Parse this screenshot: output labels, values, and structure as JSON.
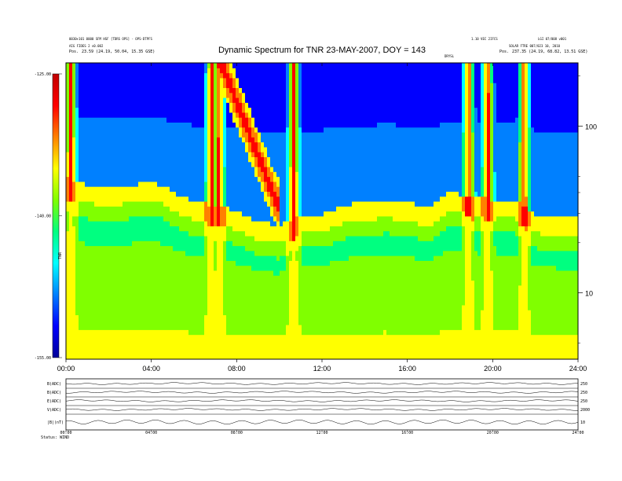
{
  "header": {
    "left_line1": "0030+101 0000 SFM HSF [TDRS OPS] - OPS-DTPFS",
    "left_line2": "AIG FIDES 2 v0.002",
    "left_pos_label": "Pos.",
    "left_pos_value": "23.59 (24.19, 50.04, 15.35 GSE)",
    "right_line0": "1.10 VEC 2IFCS",
    "right_line0b": "LGI 07/008 v001",
    "right_line1": "SOLAR FTRE 007/023 10, 2010",
    "right_pos_label": "Pos.",
    "right_pos_value": "237.35 (24.19, 68.82, 13.51 GSE)",
    "center_small": "DRYSL"
  },
  "chart_data": {
    "type": "heatmap",
    "title": "Dynamic Spectrum for TNR 23-MAY-2007, DOY = 143",
    "xlabel": "",
    "ylabel": "",
    "x_tick_labels": [
      "00:00",
      "04:00",
      "08:00",
      "12:00",
      "16:00",
      "20:00",
      "24:00"
    ],
    "x_range_hours": [
      0,
      24
    ],
    "y_scale": "log",
    "y_range_khz": [
      4,
      240
    ],
    "y_tick_labels": [
      "100",
      "10"
    ],
    "y_tick_values": [
      100,
      10
    ],
    "colorbar": {
      "ticks": [
        "-125.00",
        "-140.00",
        "-155.00"
      ],
      "tick_values": [
        -125,
        -140,
        -155
      ],
      "range": [
        -155,
        -125
      ],
      "label": "TNR",
      "colors": [
        "#00009a",
        "#0000ff",
        "#0080ff",
        "#00ffff",
        "#00ff80",
        "#80ff00",
        "#ffff00",
        "#ff8000",
        "#ff0000",
        "#c00000"
      ]
    },
    "features": {
      "plasma_line_level": [
        {
          "t": 0,
          "f": 36
        },
        {
          "t": 1,
          "f": 33
        },
        {
          "t": 2,
          "f": 32
        },
        {
          "t": 3,
          "f": 33
        },
        {
          "t": 4,
          "f": 34
        },
        {
          "t": 4.5,
          "f": 33
        },
        {
          "t": 5,
          "f": 30
        },
        {
          "t": 6,
          "f": 26
        },
        {
          "t": 7,
          "f": 25
        },
        {
          "t": 8,
          "f": 23
        },
        {
          "t": 9,
          "f": 20
        },
        {
          "t": 10,
          "f": 19
        },
        {
          "t": 11,
          "f": 22
        },
        {
          "t": 12,
          "f": 22
        },
        {
          "t": 13,
          "f": 25
        },
        {
          "t": 14,
          "f": 26
        },
        {
          "t": 15,
          "f": 27
        },
        {
          "t": 16,
          "f": 26
        },
        {
          "t": 17,
          "f": 24
        },
        {
          "t": 18,
          "f": 30
        },
        {
          "t": 19,
          "f": 28
        },
        {
          "t": 20,
          "f": 27
        },
        {
          "t": 21,
          "f": 27
        },
        {
          "t": 22,
          "f": 22
        },
        {
          "t": 23,
          "f": 21
        },
        {
          "t": 24,
          "f": 21
        }
      ],
      "type_iii_bursts_hours": [
        0.15,
        6.75,
        7.1,
        10.6,
        18.8,
        19.7,
        21.4
      ],
      "drifting_burst": {
        "start_t": 7.2,
        "start_f": 240,
        "end_t": 9.8,
        "end_f": 35
      }
    }
  },
  "bottom_panel": {
    "row_labels": [
      "B(ADC)",
      "B(ADC)",
      "E(ADC)",
      "V(ADC)",
      "|B|(nT)"
    ],
    "right_labels": [
      "250",
      "250",
      "250",
      "2000",
      "10"
    ],
    "time_labels": [
      "00:00",
      "04:00",
      "08:00",
      "12:00",
      "16:00",
      "20:00",
      "24:00"
    ],
    "footer": "Status: WIND"
  }
}
